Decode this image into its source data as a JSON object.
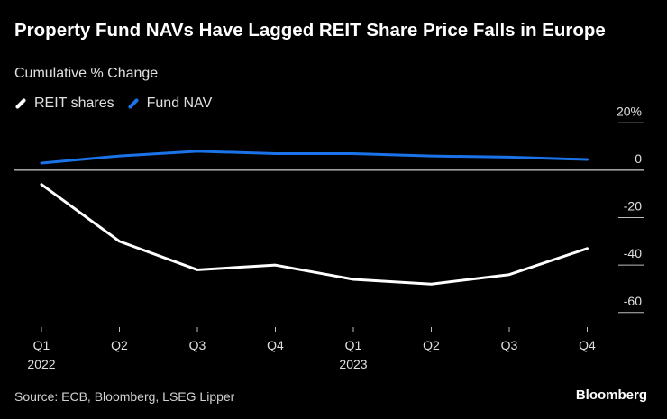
{
  "chart_data": {
    "type": "line",
    "title": "Property Fund NAVs Have Lagged REIT Share Price Falls in Europe",
    "subtitle": "Cumulative % Change",
    "categories": [
      "Q1",
      "Q2",
      "Q3",
      "Q4",
      "Q1",
      "Q2",
      "Q3",
      "Q4"
    ],
    "year_labels": [
      "2022",
      "",
      "",
      "",
      "2023",
      "",
      "",
      ""
    ],
    "series": [
      {
        "name": "REIT shares",
        "color": "#ffffff",
        "values": [
          -6,
          -30,
          -42,
          -40,
          -46,
          -48,
          -44,
          -33
        ]
      },
      {
        "name": "Fund NAV",
        "color": "#1a73e8",
        "values": [
          3,
          6,
          8,
          7,
          7,
          6,
          5.5,
          4.5
        ]
      }
    ],
    "y_ticks": [
      20,
      0,
      -20,
      -40,
      -60
    ],
    "y_tick_labels": [
      "20%",
      "0",
      "-20",
      "-40",
      "-60"
    ],
    "ylim": [
      -66,
      22
    ],
    "legend_position": "top-left"
  },
  "source": "Source: ECB, Bloomberg, LSEG Lipper",
  "brand": "Bloomberg"
}
